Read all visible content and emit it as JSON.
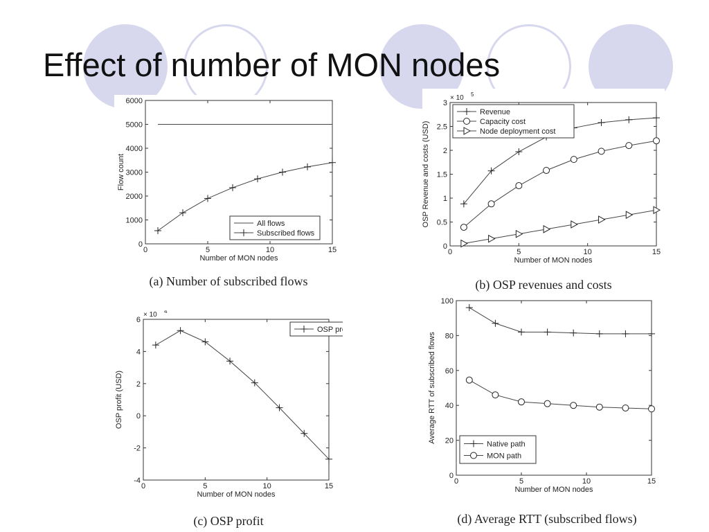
{
  "title": "Effect of number of MON nodes",
  "captions": {
    "a": "(a) Number of subscribed flows",
    "b": "(b) OSP revenues and costs",
    "c": "(c) OSP profit",
    "d": "(d) Average RTT (subscribed flows)"
  },
  "chart_data": [
    {
      "id": "a",
      "type": "line",
      "title": "",
      "xlabel": "Number of MON nodes",
      "ylabel": "Flow count",
      "xlim": [
        0,
        15
      ],
      "ylim": [
        0,
        6000
      ],
      "xticks": [
        0,
        5,
        10,
        15
      ],
      "yticks": [
        0,
        1000,
        2000,
        3000,
        4000,
        5000,
        6000
      ],
      "exponent": "",
      "legend_position": "lower-right",
      "series": [
        {
          "name": "All flows",
          "marker": "none",
          "x": [
            1,
            15
          ],
          "y": [
            5000,
            5000
          ]
        },
        {
          "name": "Subscribed flows",
          "marker": "plus",
          "x": [
            1,
            3,
            5,
            7,
            9,
            11,
            13,
            15
          ],
          "y": [
            550,
            1300,
            1900,
            2350,
            2720,
            3000,
            3220,
            3400
          ]
        }
      ]
    },
    {
      "id": "b",
      "type": "line",
      "title": "",
      "xlabel": "Number of MON nodes",
      "ylabel": "OSP Revenue and costs (USD)",
      "xlim": [
        0,
        15
      ],
      "ylim": [
        0,
        3
      ],
      "xticks": [
        0,
        5,
        10,
        15
      ],
      "yticks": [
        0,
        0.5,
        1,
        1.5,
        2,
        2.5,
        3
      ],
      "exponent": "5",
      "legend_position": "top-left",
      "series": [
        {
          "name": "Revenue",
          "marker": "plus",
          "x": [
            1,
            3,
            5,
            7,
            9,
            11,
            13,
            15
          ],
          "y": [
            0.88,
            1.57,
            1.97,
            2.28,
            2.47,
            2.58,
            2.64,
            2.68
          ]
        },
        {
          "name": "Capacity cost",
          "marker": "circle",
          "x": [
            1,
            3,
            5,
            7,
            9,
            11,
            13,
            15
          ],
          "y": [
            0.39,
            0.88,
            1.26,
            1.58,
            1.81,
            1.98,
            2.1,
            2.2
          ]
        },
        {
          "name": "Node deployment cost",
          "marker": "triangle",
          "x": [
            1,
            3,
            5,
            7,
            9,
            11,
            13,
            15
          ],
          "y": [
            0.05,
            0.15,
            0.25,
            0.35,
            0.45,
            0.55,
            0.65,
            0.75
          ]
        }
      ]
    },
    {
      "id": "c",
      "type": "line",
      "title": "",
      "xlabel": "Number of MON nodes",
      "ylabel": "OSP profit (USD)",
      "xlim": [
        0,
        15
      ],
      "ylim": [
        -4,
        6
      ],
      "xticks": [
        0,
        5,
        10,
        15
      ],
      "yticks": [
        -4,
        -2,
        0,
        2,
        4,
        6
      ],
      "exponent": "4",
      "legend_position": "top-right",
      "series": [
        {
          "name": "OSP profit",
          "marker": "plus",
          "x": [
            1,
            3,
            5,
            7,
            9,
            11,
            13,
            15
          ],
          "y": [
            4.4,
            5.3,
            4.6,
            3.4,
            2.05,
            0.5,
            -1.1,
            -2.7
          ]
        }
      ]
    },
    {
      "id": "d",
      "type": "line",
      "title": "",
      "xlabel": "Number of MON nodes",
      "ylabel": "Average RTT of subscribed flows",
      "xlim": [
        0,
        15
      ],
      "ylim": [
        0,
        100
      ],
      "xticks": [
        0,
        5,
        10,
        15
      ],
      "yticks": [
        0,
        20,
        40,
        60,
        80,
        100
      ],
      "exponent": "",
      "legend_position": "lower-left",
      "series": [
        {
          "name": "Native path",
          "marker": "plus",
          "x": [
            1,
            3,
            5,
            7,
            9,
            11,
            13,
            15
          ],
          "y": [
            96,
            87,
            82,
            82,
            81.5,
            81,
            81,
            81
          ]
        },
        {
          "name": "MON path",
          "marker": "circle",
          "x": [
            1,
            3,
            5,
            7,
            9,
            11,
            13,
            15
          ],
          "y": [
            54.5,
            46,
            42,
            41,
            40,
            39,
            38.5,
            38
          ]
        }
      ]
    }
  ]
}
